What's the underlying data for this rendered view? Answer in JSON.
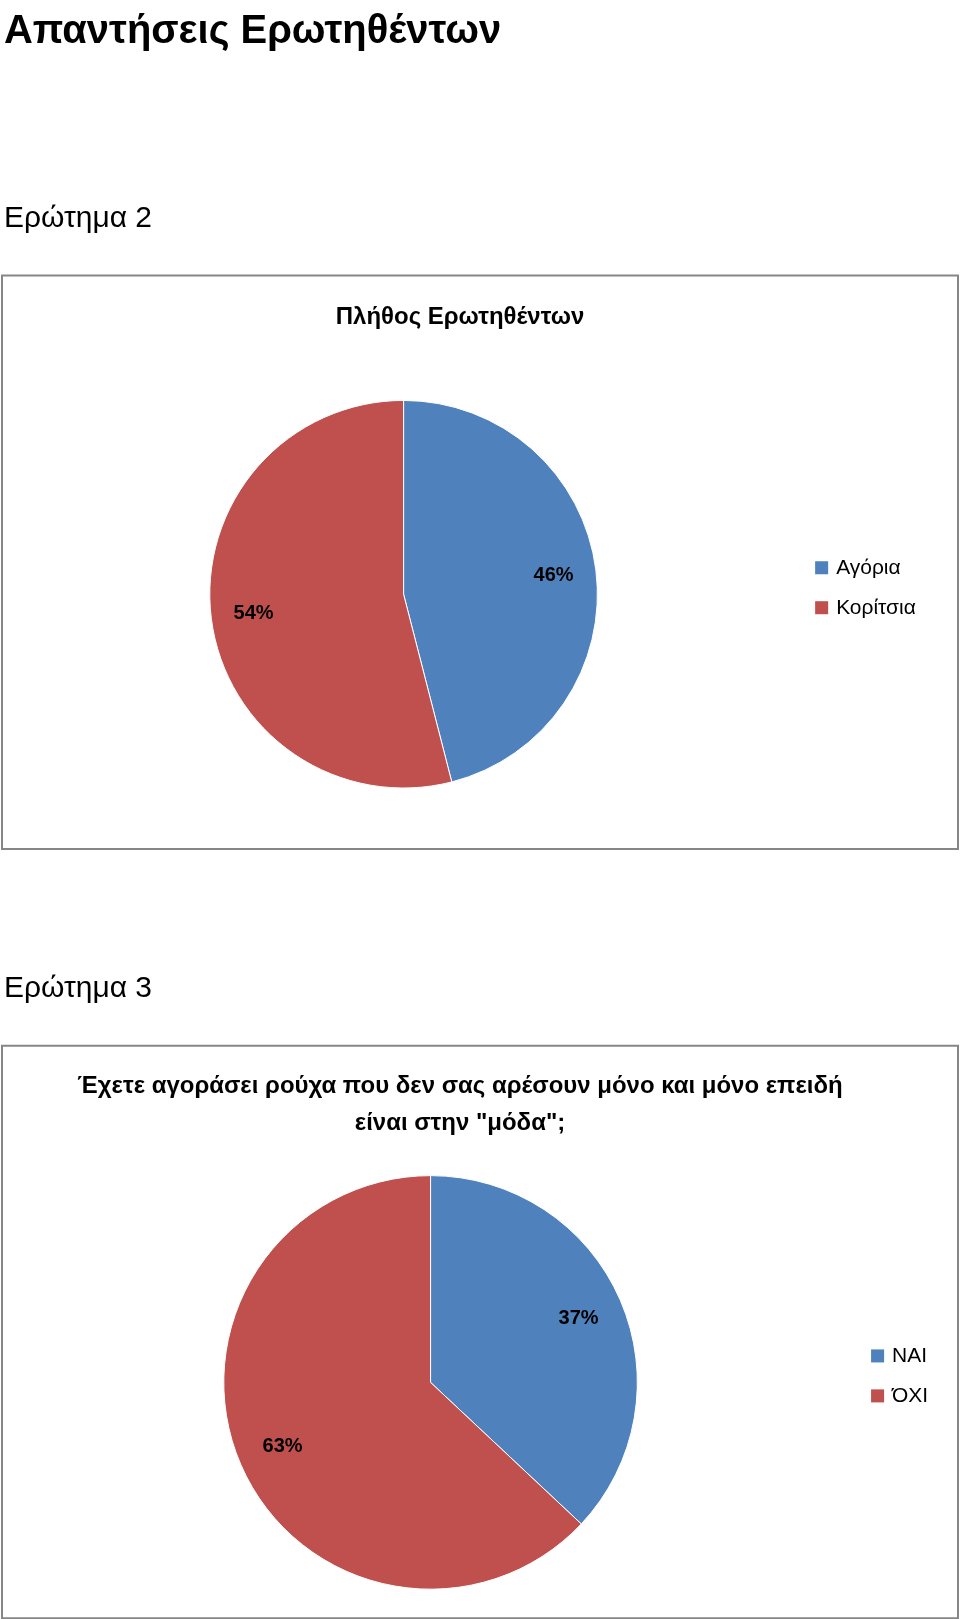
{
  "chart_data": [
    {
      "type": "pie",
      "title": "Πλήθος Ερωτηθέντων",
      "annotations": [
        "Απαντήσεις Ερωτηθέντων",
        "Ερώτημα 2"
      ],
      "categories": [
        "Αγόρια",
        "Κορίτσια"
      ],
      "values": [
        46,
        54
      ],
      "value_labels": [
        "46%",
        "54%"
      ],
      "colors": [
        "#4f81bd",
        "#c0504d"
      ],
      "legend": "right"
    },
    {
      "type": "pie",
      "title": "Έχετε αγοράσει ρούχα που δεν σας αρέσουν μόνο και μόνο επειδή είναι στην \"μόδα\";",
      "annotations": [
        "Ερώτημα 3"
      ],
      "categories": [
        "ΝΑΙ",
        "ΌΧΙ"
      ],
      "values": [
        37,
        63
      ],
      "value_labels": [
        "37%",
        "63%"
      ],
      "colors": [
        "#4f81bd",
        "#c0504d"
      ],
      "legend": "right"
    }
  ]
}
